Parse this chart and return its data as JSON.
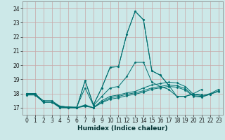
{
  "title": "",
  "xlabel": "Humidex (Indice chaleur)",
  "bg_color": "#cce8e8",
  "grid_color": "#c8a8a8",
  "line_color": "#007070",
  "xlim": [
    -0.5,
    23.5
  ],
  "ylim": [
    16.5,
    24.5
  ],
  "yticks": [
    17,
    18,
    19,
    20,
    21,
    22,
    23,
    24
  ],
  "xticks": [
    0,
    1,
    2,
    3,
    4,
    5,
    6,
    7,
    8,
    9,
    10,
    11,
    12,
    13,
    14,
    15,
    16,
    17,
    18,
    19,
    20,
    21,
    22,
    23
  ],
  "series": [
    {
      "x": [
        0,
        1,
        2,
        3,
        4,
        5,
        6,
        7,
        8,
        9,
        10,
        11,
        12,
        13,
        14,
        15,
        16,
        17,
        18,
        19,
        20,
        21,
        22,
        23
      ],
      "y": [
        17.9,
        17.9,
        17.4,
        17.4,
        17.0,
        17.0,
        17.0,
        18.9,
        17.2,
        18.4,
        19.85,
        19.9,
        22.2,
        23.8,
        23.2,
        19.6,
        19.3,
        18.6,
        null,
        null,
        null,
        null,
        null,
        null
      ]
    },
    {
      "x": [
        0,
        1,
        2,
        3,
        4,
        5,
        6,
        7,
        8,
        9,
        10,
        11,
        12,
        13,
        14,
        15,
        16,
        17,
        18,
        19,
        20,
        21,
        22,
        23
      ],
      "y": [
        17.9,
        17.9,
        17.4,
        17.4,
        17.0,
        17.0,
        17.0,
        18.9,
        17.2,
        18.4,
        19.85,
        19.9,
        22.2,
        23.8,
        23.2,
        19.6,
        19.3,
        18.6,
        17.8,
        17.8,
        18.0,
        18.3,
        null,
        null
      ]
    },
    {
      "x": [
        0,
        1,
        2,
        3,
        4,
        5,
        6,
        7,
        8,
        9,
        10,
        11,
        12,
        13,
        14,
        15,
        16,
        17,
        18,
        19,
        20,
        21,
        22,
        23
      ],
      "y": [
        17.95,
        17.95,
        17.5,
        17.5,
        17.1,
        17.05,
        17.05,
        18.4,
        17.15,
        17.8,
        18.4,
        18.5,
        19.2,
        20.2,
        20.2,
        18.8,
        18.5,
        18.3,
        17.8,
        17.8,
        17.95,
        17.95,
        null,
        null
      ]
    },
    {
      "x": [
        0,
        1,
        2,
        3,
        4,
        5,
        6,
        7,
        8,
        9,
        10,
        11,
        12,
        13,
        14,
        15,
        16,
        17,
        18,
        19,
        20,
        21,
        22,
        23
      ],
      "y": [
        18.0,
        18.0,
        17.4,
        17.4,
        17.05,
        17.0,
        17.0,
        17.2,
        17.0,
        17.5,
        17.8,
        17.9,
        18.05,
        18.15,
        18.4,
        18.6,
        18.7,
        18.8,
        18.75,
        18.5,
        17.95,
        17.85,
        18.0,
        18.3
      ]
    },
    {
      "x": [
        0,
        1,
        2,
        3,
        4,
        5,
        6,
        7,
        8,
        9,
        10,
        11,
        12,
        13,
        14,
        15,
        16,
        17,
        18,
        19,
        20,
        21,
        22,
        23
      ],
      "y": [
        18.0,
        18.0,
        17.4,
        17.4,
        17.1,
        17.05,
        17.0,
        17.15,
        17.0,
        17.4,
        17.7,
        17.8,
        17.95,
        18.05,
        18.2,
        18.4,
        18.5,
        18.6,
        18.55,
        18.35,
        17.85,
        17.8,
        17.95,
        18.2
      ]
    },
    {
      "x": [
        0,
        1,
        2,
        3,
        4,
        5,
        6,
        7,
        8,
        9,
        10,
        11,
        12,
        13,
        14,
        15,
        16,
        17,
        18,
        19,
        20,
        21,
        22,
        23
      ],
      "y": [
        18.0,
        18.0,
        17.4,
        17.4,
        17.1,
        17.05,
        17.0,
        17.1,
        17.0,
        17.35,
        17.6,
        17.7,
        17.85,
        17.95,
        18.1,
        18.3,
        18.4,
        18.5,
        18.45,
        18.25,
        17.8,
        17.75,
        17.95,
        18.15
      ]
    }
  ]
}
